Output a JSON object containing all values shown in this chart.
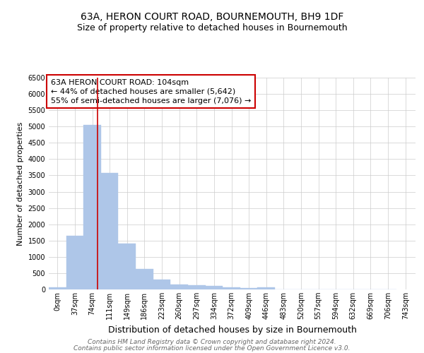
{
  "title": "63A, HERON COURT ROAD, BOURNEMOUTH, BH9 1DF",
  "subtitle": "Size of property relative to detached houses in Bournemouth",
  "xlabel": "Distribution of detached houses by size in Bournemouth",
  "ylabel": "Number of detached properties",
  "bar_edges": [
    0,
    37,
    74,
    111,
    148,
    185,
    222,
    259,
    296,
    333,
    370,
    407,
    444,
    481,
    518,
    555,
    592,
    629,
    666,
    703,
    740
  ],
  "bar_labels": [
    "0sqm",
    "37sqm",
    "74sqm",
    "111sqm",
    "149sqm",
    "186sqm",
    "223sqm",
    "260sqm",
    "297sqm",
    "334sqm",
    "372sqm",
    "409sqm",
    "446sqm",
    "483sqm",
    "520sqm",
    "557sqm",
    "594sqm",
    "632sqm",
    "669sqm",
    "706sqm",
    "743sqm"
  ],
  "bar_heights": [
    75,
    1650,
    5050,
    3575,
    1400,
    625,
    310,
    160,
    140,
    100,
    55,
    45,
    75,
    0,
    0,
    0,
    0,
    0,
    0,
    0
  ],
  "bar_color": "#aec6e8",
  "bar_edgecolor": "#aec6e8",
  "redline_x": 104,
  "annotation_text": "63A HERON COURT ROAD: 104sqm\n← 44% of detached houses are smaller (5,642)\n55% of semi-detached houses are larger (7,076) →",
  "annotation_box_edgecolor": "#cc0000",
  "annotation_box_facecolor": "#ffffff",
  "ylim": [
    0,
    6500
  ],
  "yticks": [
    0,
    500,
    1000,
    1500,
    2000,
    2500,
    3000,
    3500,
    4000,
    4500,
    5000,
    5500,
    6000,
    6500
  ],
  "xlim_max": 780,
  "grid_color": "#cccccc",
  "footer1": "Contains HM Land Registry data © Crown copyright and database right 2024.",
  "footer2": "Contains public sector information licensed under the Open Government Licence v3.0.",
  "title_fontsize": 10,
  "subtitle_fontsize": 9,
  "xlabel_fontsize": 9,
  "ylabel_fontsize": 8,
  "tick_fontsize": 7,
  "annotation_fontsize": 8,
  "footer_fontsize": 6.5
}
